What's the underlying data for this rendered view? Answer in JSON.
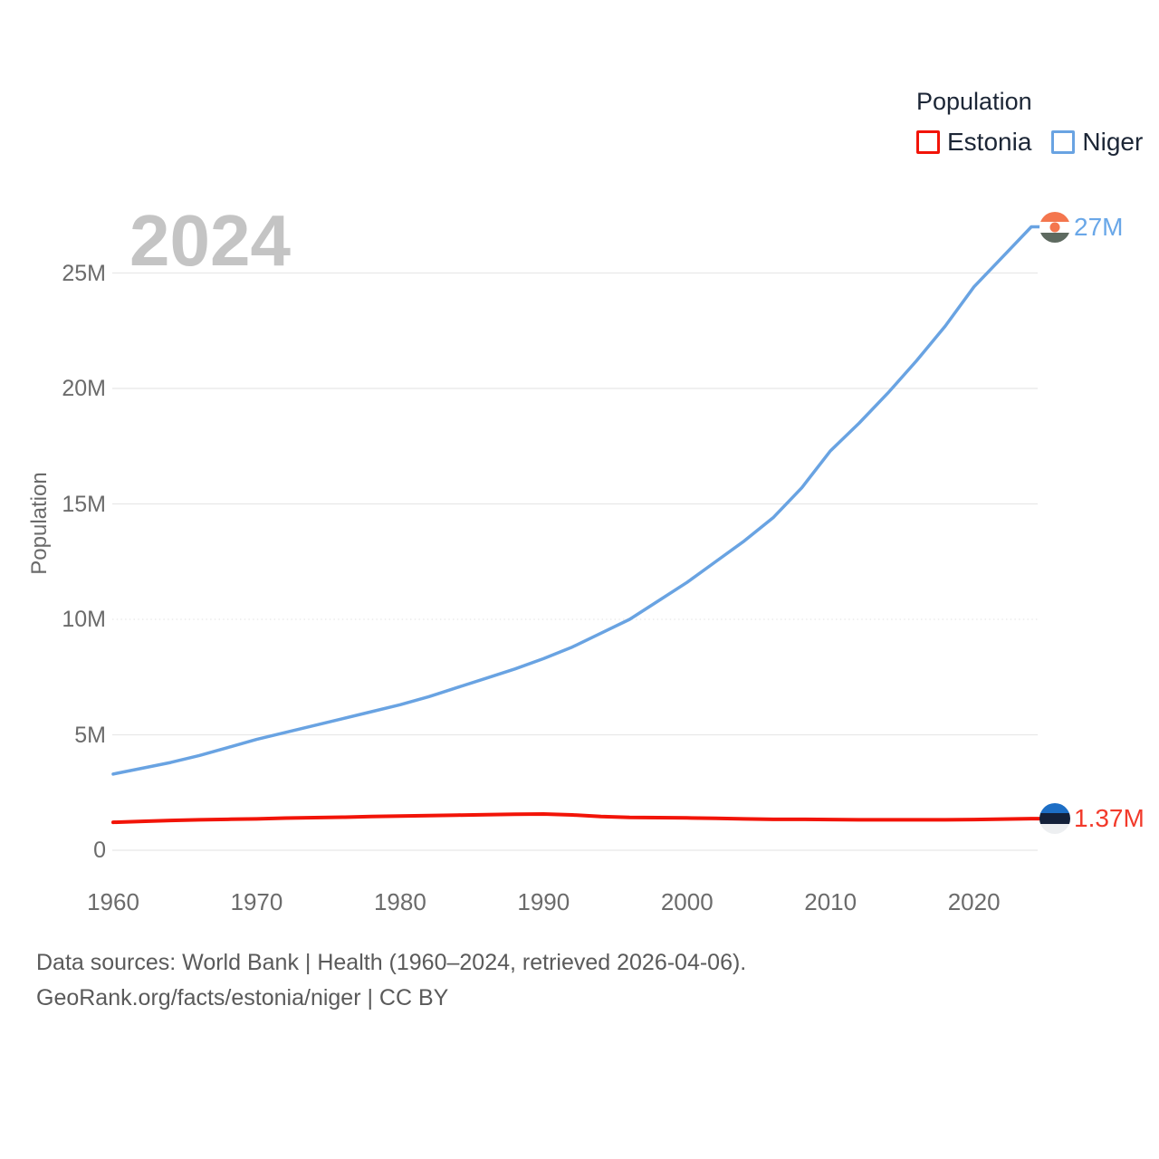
{
  "legend": {
    "title": "Population",
    "items": [
      {
        "label": "Estonia"
      },
      {
        "label": "Niger"
      }
    ]
  },
  "footer": {
    "line1": "Data sources: World Bank | Health (1960–2024, retrieved 2026-04-06).",
    "line2": "GeoRank.org/facts/estonia/niger | CC BY"
  },
  "icons": {
    "estonia_flag": {
      "top": "#1d6ec5",
      "middle": "#14213a",
      "bottom": "#edeff1"
    },
    "niger_flag": {
      "top": "#f4764e",
      "middle": "#ffffff",
      "bottom": "#5e6a60",
      "disc": "#f4764e"
    }
  },
  "chart_data": {
    "type": "line",
    "watermark": "2024",
    "ylabel": "Population",
    "xlabel": "",
    "units": "millions",
    "xlim": [
      1960,
      2024
    ],
    "ylim": [
      0,
      27.5
    ],
    "grid": "horizontal",
    "legend_position": "top-right",
    "gridline_color": "#e8e8e8",
    "y_ticks": [
      {
        "value": 0,
        "label": "0",
        "dotted": false
      },
      {
        "value": 5,
        "label": "5M",
        "dotted": false
      },
      {
        "value": 10,
        "label": "10M",
        "dotted": true
      },
      {
        "value": 15,
        "label": "15M",
        "dotted": false
      },
      {
        "value": 20,
        "label": "20M",
        "dotted": false
      },
      {
        "value": 25,
        "label": "25M",
        "dotted": false
      }
    ],
    "x_ticks": [
      {
        "value": 1960,
        "label": "1960"
      },
      {
        "value": 1970,
        "label": "1970"
      },
      {
        "value": 1980,
        "label": "1980"
      },
      {
        "value": 1990,
        "label": "1990"
      },
      {
        "value": 2000,
        "label": "2000"
      },
      {
        "value": 2010,
        "label": "2010"
      },
      {
        "value": 2020,
        "label": "2020"
      }
    ],
    "x": [
      1960,
      1962,
      1964,
      1966,
      1968,
      1970,
      1972,
      1974,
      1976,
      1978,
      1980,
      1982,
      1984,
      1986,
      1988,
      1990,
      1992,
      1994,
      1996,
      1998,
      2000,
      2002,
      2004,
      2006,
      2008,
      2010,
      2012,
      2014,
      2016,
      2018,
      2020,
      2022,
      2024
    ],
    "series": [
      {
        "name": "Estonia",
        "color": "#f21408",
        "label_color": "#f23a2b",
        "end_label": "1.37M",
        "values": [
          1.21,
          1.25,
          1.29,
          1.32,
          1.34,
          1.36,
          1.39,
          1.41,
          1.43,
          1.46,
          1.48,
          1.5,
          1.52,
          1.54,
          1.56,
          1.57,
          1.53,
          1.46,
          1.42,
          1.41,
          1.4,
          1.38,
          1.36,
          1.34,
          1.34,
          1.33,
          1.32,
          1.32,
          1.32,
          1.32,
          1.33,
          1.35,
          1.37
        ]
      },
      {
        "name": "Niger",
        "color": "#69a3e2",
        "label_color": "#69a7e8",
        "end_label": "27M",
        "values": [
          3.3,
          3.55,
          3.8,
          4.1,
          4.45,
          4.8,
          5.1,
          5.4,
          5.7,
          6.0,
          6.3,
          6.65,
          7.05,
          7.45,
          7.85,
          8.3,
          8.8,
          9.4,
          10.0,
          10.8,
          11.6,
          12.5,
          13.4,
          14.4,
          15.7,
          17.3,
          18.5,
          19.8,
          21.2,
          22.7,
          24.4,
          25.7,
          27.0
        ]
      }
    ]
  }
}
